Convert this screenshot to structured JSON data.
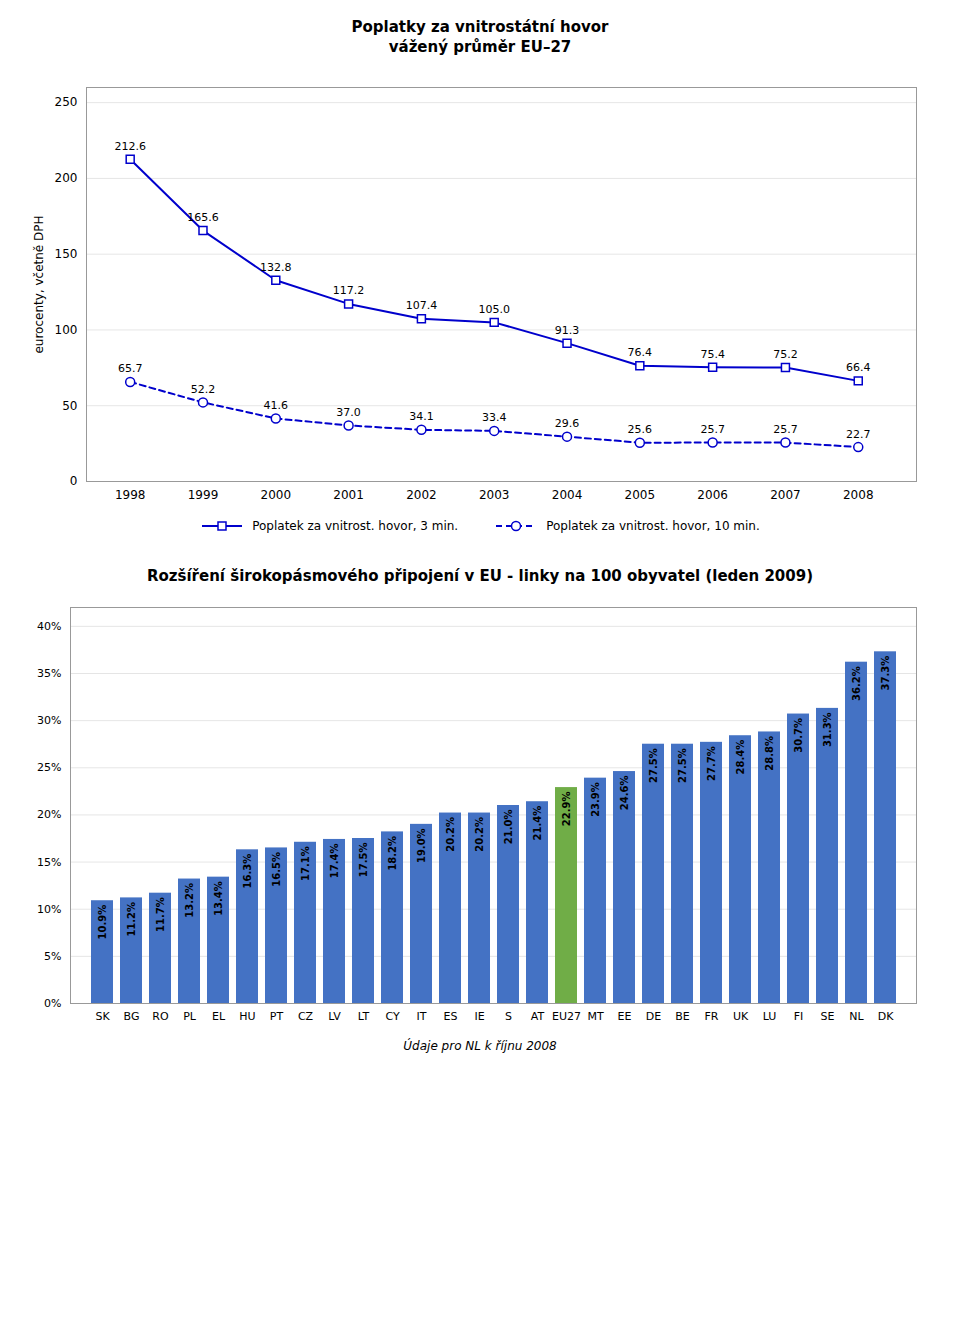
{
  "chart_data": [
    {
      "type": "line",
      "title": "Poplatky za vnitrostátní hovor\nvážený průměr EU–27",
      "x": [
        1998,
        1999,
        2000,
        2001,
        2002,
        2003,
        2004,
        2005,
        2006,
        2007,
        2008
      ],
      "series": [
        {
          "name": "Poplatek za vnitrost. hovor, 3 min.",
          "color": "#0000CC",
          "marker": "square",
          "line_style": "solid",
          "values": [
            212.6,
            165.6,
            132.8,
            117.2,
            107.4,
            105.0,
            91.3,
            76.4,
            75.4,
            75.2,
            66.4
          ],
          "value_labels": [
            "212.6",
            "165.6",
            "132.8",
            "117.2",
            "107.4",
            "105.0",
            "91.3",
            "76.4",
            "75.4",
            "75.2",
            "66.4"
          ]
        },
        {
          "name": "Poplatek za vnitrost. hovor, 10 min.",
          "color": "#0000CC",
          "marker": "circle",
          "line_style": "dashed",
          "values": [
            65.7,
            52.2,
            41.6,
            37.0,
            34.1,
            33.4,
            29.6,
            25.6,
            25.7,
            25.7,
            22.7
          ],
          "value_labels": [
            "65.7",
            "52.2",
            "41.6",
            "37.0",
            "34.1",
            "33.4",
            "29.6",
            "25.6",
            "25.7",
            "25.7",
            "22.7"
          ]
        }
      ],
      "ylabel": "eurocenty, včetně DPH",
      "xlim": [
        1997.4,
        2008.8
      ],
      "xticks": [
        1998,
        1999,
        2000,
        2001,
        2002,
        2003,
        2004,
        2005,
        2006,
        2007,
        2008
      ],
      "ylim": [
        0,
        260
      ],
      "yticks": [
        0,
        50,
        100,
        150,
        200,
        250
      ],
      "grid": true,
      "legend": "bottom",
      "data_labels": true
    },
    {
      "type": "bar",
      "title": "Rozšíření širokopásmového připojení v EU - linky na 100 obyvatel (leden 2009)",
      "categories": [
        "SK",
        "BG",
        "RO",
        "PL",
        "EL",
        "HU",
        "PT",
        "CZ",
        "LV",
        "LT",
        "CY",
        "IT",
        "ES",
        "IE",
        "S",
        "AT",
        "EU27",
        "MT",
        "EE",
        "DE",
        "BE",
        "FR",
        "UK",
        "LU",
        "FI",
        "SE",
        "NL",
        "DK"
      ],
      "values": [
        10.9,
        11.2,
        11.7,
        13.2,
        13.4,
        16.3,
        16.5,
        17.1,
        17.4,
        17.5,
        18.2,
        19.0,
        20.2,
        20.2,
        21.0,
        21.4,
        22.9,
        23.9,
        24.6,
        27.5,
        27.5,
        27.7,
        28.4,
        28.8,
        30.7,
        31.3,
        36.2,
        37.3
      ],
      "value_labels": [
        "10.9%",
        "11.2%",
        "11.7%",
        "13.2%",
        "13.4%",
        "16.3%",
        "16.5%",
        "17.1%",
        "17.4%",
        "17.5%",
        "18.2%",
        "19.0%",
        "20.2%",
        "20.2%",
        "21.0%",
        "21.4%",
        "22.9%",
        "23.9%",
        "24.6%",
        "27.5%",
        "27.5%",
        "27.7%",
        "28.4%",
        "28.8%",
        "30.7%",
        "31.3%",
        "36.2%",
        "37.3%"
      ],
      "colors": [
        "#4472C4",
        "#4472C4",
        "#4472C4",
        "#4472C4",
        "#4472C4",
        "#4472C4",
        "#4472C4",
        "#4472C4",
        "#4472C4",
        "#4472C4",
        "#4472C4",
        "#4472C4",
        "#4472C4",
        "#4472C4",
        "#4472C4",
        "#4472C4",
        "#70AD47",
        "#4472C4",
        "#4472C4",
        "#4472C4",
        "#4472C4",
        "#4472C4",
        "#4472C4",
        "#4472C4",
        "#4472C4",
        "#4472C4",
        "#4472C4",
        "#4472C4"
      ],
      "ylim": [
        0,
        42
      ],
      "yticks": [
        {
          "value": 0,
          "label": "0%"
        },
        {
          "value": 5,
          "label": "5%"
        },
        {
          "value": 10,
          "label": "10%"
        },
        {
          "value": 15,
          "label": "15%"
        },
        {
          "value": 20,
          "label": "20%"
        },
        {
          "value": 25,
          "label": "25%"
        },
        {
          "value": 30,
          "label": "30%"
        },
        {
          "value": 35,
          "label": "35%"
        },
        {
          "value": 40,
          "label": "40%"
        }
      ],
      "grid": true,
      "data_labels": true,
      "annotations": [
        "Údaje pro NL k říjnu 2008"
      ]
    }
  ]
}
